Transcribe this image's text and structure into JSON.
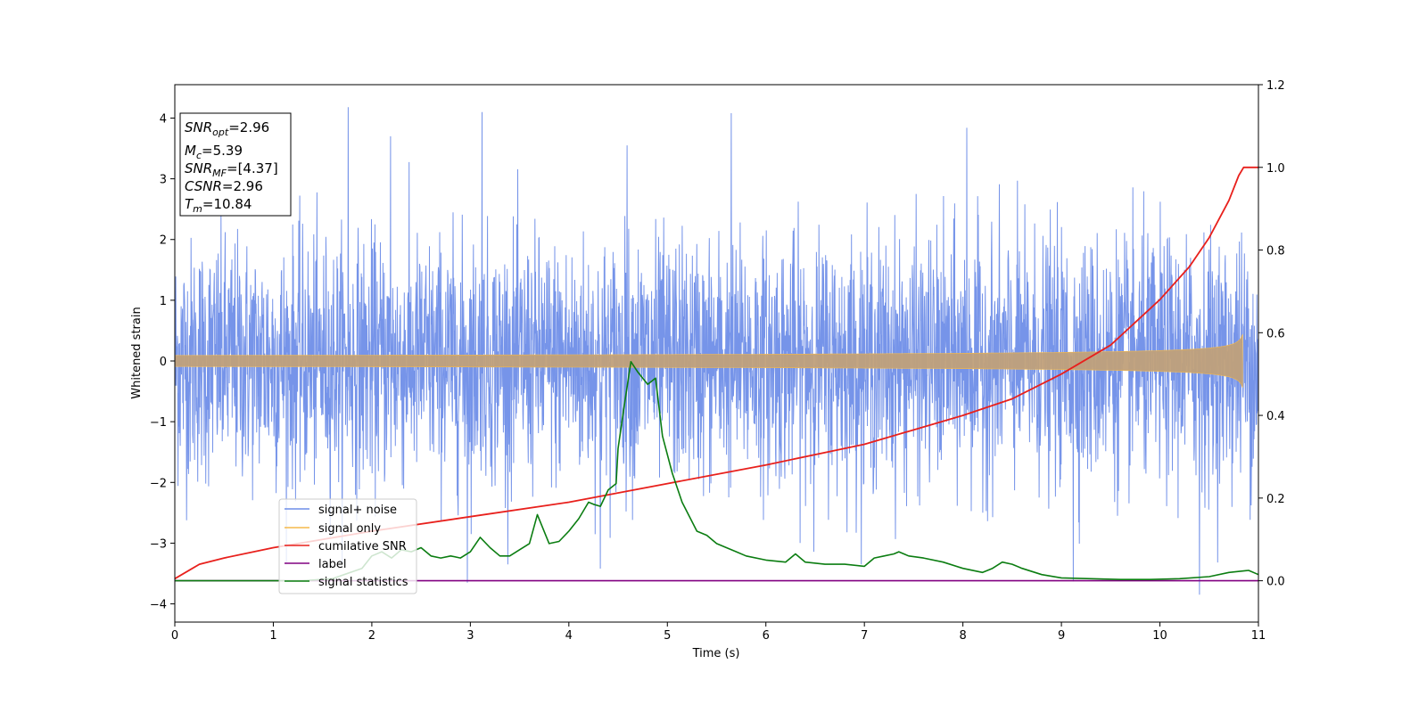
{
  "chart_data": {
    "type": "line",
    "title": "",
    "xlabel": "Time (s)",
    "ylabel": "Whitened strain",
    "xlim": [
      0,
      11
    ],
    "ylim": [
      -4.3,
      4.55
    ],
    "y2lim": [
      -0.1,
      1.2
    ],
    "x_ticks": [
      "0",
      "1",
      "2",
      "3",
      "4",
      "5",
      "6",
      "7",
      "8",
      "9",
      "10",
      "11"
    ],
    "y_ticks": [
      "−4",
      "−3",
      "−2",
      "−1",
      "0",
      "1",
      "2",
      "3",
      "4"
    ],
    "y2_ticks": [
      "0.0",
      "0.2",
      "0.4",
      "0.6",
      "0.8",
      "1.0",
      "1.2"
    ],
    "grid": false,
    "legend_position": "lower-left",
    "colors": {
      "signal_noise": "#6f8ee8",
      "signal_only": "#f5b94a",
      "signal_only_fill": "#c0a07a",
      "cumulative_snr": "#e8201c",
      "label": "#800080",
      "signal_statistics": "#0b7d11"
    },
    "series": [
      {
        "name": "signal+ noise",
        "axis": "left",
        "description_kind": "noise",
        "x_range": [
          0,
          11
        ],
        "y_range": [
          -3.65,
          4.18
        ],
        "peaks": [
          [
            1.76,
            4.18
          ],
          [
            3.12,
            4.1
          ],
          [
            5.65,
            4.08
          ],
          [
            8.04,
            3.84
          ],
          [
            4.59,
            3.55
          ],
          [
            2.19,
            3.7
          ]
        ],
        "troughs": [
          [
            2.97,
            -3.65
          ],
          [
            10.4,
            -3.85
          ],
          [
            4.32,
            -3.42
          ],
          [
            9.12,
            -3.63
          ]
        ]
      },
      {
        "name": "signal only",
        "axis": "left",
        "description_kind": "chirp",
        "x_range": [
          0,
          10.84
        ],
        "amplitude_end": 0.35
      },
      {
        "name": "cumilative SNR",
        "axis": "right",
        "x": [
          0,
          0.25,
          0.5,
          1,
          1.5,
          2,
          3,
          4,
          5,
          6,
          7,
          8,
          8.5,
          9,
          9.5,
          10,
          10.3,
          10.5,
          10.7,
          10.8,
          10.85,
          11
        ],
        "y": [
          0.005,
          0.04,
          0.055,
          0.08,
          0.1,
          0.12,
          0.155,
          0.19,
          0.235,
          0.28,
          0.33,
          0.4,
          0.44,
          0.5,
          0.57,
          0.68,
          0.76,
          0.83,
          0.92,
          0.98,
          1.0,
          1.0
        ]
      },
      {
        "name": "label",
        "axis": "right",
        "x": [
          0,
          11
        ],
        "y": [
          0,
          0
        ]
      },
      {
        "name": "signal statistics",
        "axis": "right",
        "x": [
          0,
          1,
          1.3,
          1.6,
          1.9,
          2.0,
          2.1,
          2.2,
          2.3,
          2.4,
          2.5,
          2.6,
          2.7,
          2.8,
          2.9,
          3.0,
          3.1,
          3.2,
          3.3,
          3.4,
          3.5,
          3.6,
          3.68,
          3.8,
          3.9,
          4.0,
          4.1,
          4.2,
          4.25,
          4.32,
          4.4,
          4.48,
          4.5,
          4.56,
          4.63,
          4.7,
          4.8,
          4.88,
          4.95,
          5.05,
          5.15,
          5.3,
          5.4,
          5.5,
          5.6,
          5.7,
          5.8,
          6.0,
          6.2,
          6.3,
          6.4,
          6.6,
          6.8,
          7.0,
          7.1,
          7.2,
          7.3,
          7.35,
          7.45,
          7.6,
          7.8,
          8.0,
          8.2,
          8.3,
          8.4,
          8.5,
          8.6,
          8.8,
          9.0,
          9.3,
          9.6,
          9.9,
          10.2,
          10.5,
          10.7,
          10.9,
          11.0
        ],
        "y": [
          0.0,
          0.0,
          0.0,
          0.005,
          0.03,
          0.06,
          0.07,
          0.055,
          0.075,
          0.07,
          0.08,
          0.06,
          0.055,
          0.06,
          0.055,
          0.07,
          0.105,
          0.08,
          0.06,
          0.06,
          0.075,
          0.09,
          0.16,
          0.09,
          0.095,
          0.12,
          0.15,
          0.19,
          0.185,
          0.18,
          0.22,
          0.235,
          0.32,
          0.42,
          0.53,
          0.505,
          0.475,
          0.49,
          0.35,
          0.26,
          0.19,
          0.12,
          0.11,
          0.09,
          0.08,
          0.07,
          0.06,
          0.05,
          0.045,
          0.065,
          0.045,
          0.04,
          0.04,
          0.035,
          0.055,
          0.06,
          0.065,
          0.07,
          0.06,
          0.055,
          0.045,
          0.03,
          0.02,
          0.03,
          0.045,
          0.04,
          0.03,
          0.015,
          0.007,
          0.005,
          0.003,
          0.003,
          0.005,
          0.01,
          0.02,
          0.025,
          0.015
        ]
      }
    ]
  },
  "stats_box": {
    "snr_opt": {
      "main": "SNR",
      "sub": "opt",
      "value": "=2.96"
    },
    "mc": {
      "main": "M",
      "sub": "c",
      "value": "=5.39"
    },
    "snr_mf": {
      "main": "SNR",
      "sub": "MF",
      "value": "=[4.37]"
    },
    "csnr": {
      "main": "CSNR",
      "value": "=2.96"
    },
    "tm": {
      "main": "T",
      "sub": "m",
      "value": "=10.84"
    }
  }
}
